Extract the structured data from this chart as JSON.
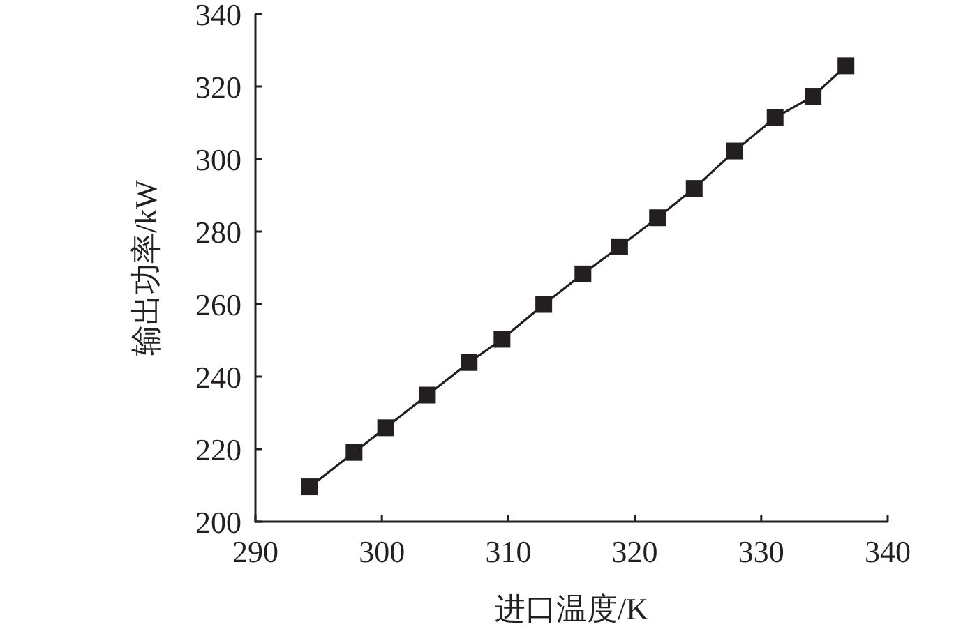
{
  "chart_data": {
    "type": "line",
    "xlabel": "进口温度/K",
    "ylabel": "输出功率/kW",
    "x": [
      294.3,
      297.8,
      300.3,
      303.6,
      306.9,
      309.5,
      312.8,
      315.9,
      318.8,
      321.8,
      324.7,
      327.9,
      331.1,
      334.1,
      336.7
    ],
    "series": [
      {
        "color": "#231f20",
        "values": [
          209.6,
          219.1,
          225.9,
          234.9,
          243.9,
          250.3,
          259.9,
          268.3,
          275.8,
          283.8,
          291.9,
          302.2,
          311.4,
          317.3,
          325.7
        ]
      }
    ],
    "xlim": [
      290,
      340
    ],
    "xticks": [
      290,
      300,
      310,
      320,
      330,
      340
    ],
    "ylim": [
      200,
      340
    ],
    "yticks": [
      200,
      220,
      240,
      260,
      280,
      300,
      320,
      340
    ],
    "marker": "square",
    "line_style": "solid",
    "grid": false
  }
}
